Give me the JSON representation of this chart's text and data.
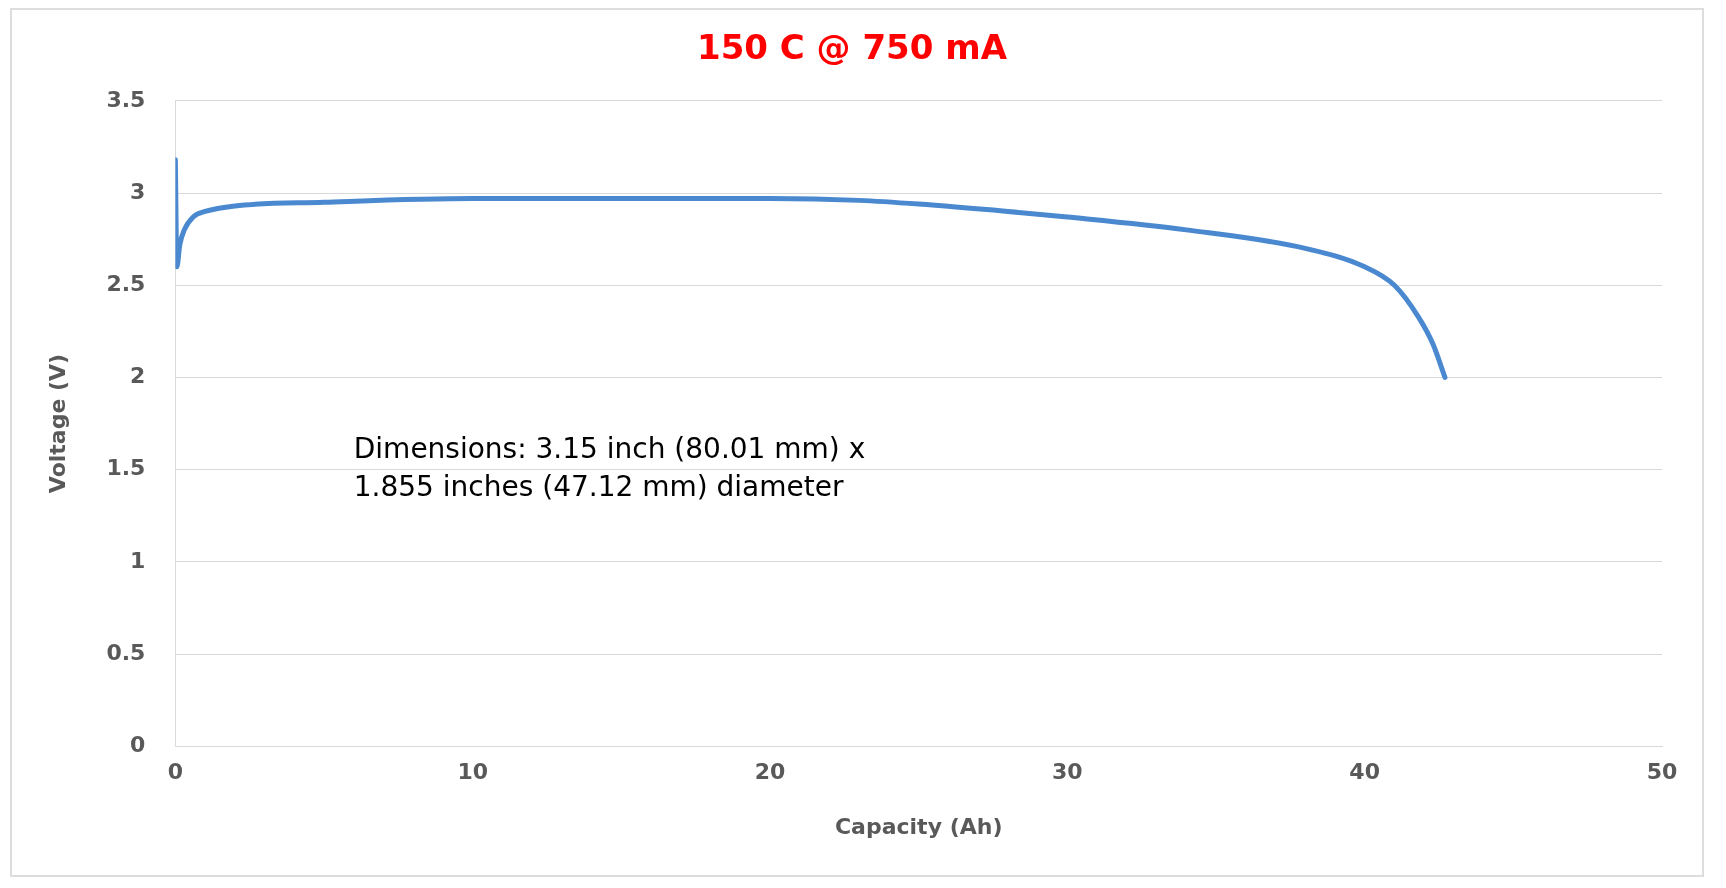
{
  "chart_data": {
    "type": "line",
    "title": "150 C @ 750 mA",
    "xlabel": "Capacity (Ah)",
    "ylabel": "Voltage (V)",
    "annotations": [
      "Dimensions: 3.15 inch (80.01 mm) x\n1.855 inches (47.12 mm) diameter"
    ],
    "series": [
      {
        "color": "#4a89d0",
        "x": [
          0,
          0.05,
          0.15,
          0.3,
          0.6,
          1,
          2,
          5,
          10,
          15,
          20,
          23,
          25,
          28,
          30,
          34,
          38,
          40,
          41,
          41.8,
          42.3,
          42.7
        ],
        "values": [
          3.18,
          2.6,
          2.72,
          2.8,
          2.87,
          2.9,
          2.93,
          2.95,
          2.97,
          2.97,
          2.97,
          2.96,
          2.94,
          2.9,
          2.87,
          2.8,
          2.7,
          2.6,
          2.5,
          2.33,
          2.18,
          2.0
        ]
      }
    ],
    "xlim": [
      0,
      50
    ],
    "xticks": [
      0,
      10,
      20,
      30,
      40,
      50
    ],
    "ylim": [
      0,
      3.5
    ],
    "yticks": [
      0,
      0.5,
      1,
      1.5,
      2,
      2.5,
      3,
      3.5
    ],
    "grid": "y",
    "legend": false,
    "marker": "none",
    "line_style": "solid"
  }
}
